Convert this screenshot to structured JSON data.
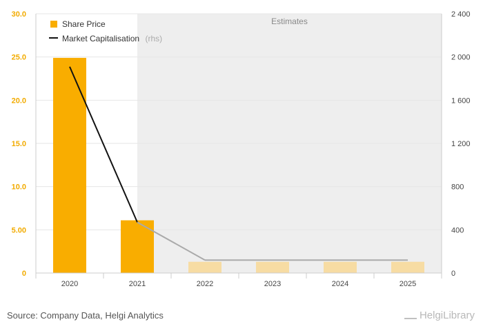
{
  "chart_data": {
    "type": "bar",
    "categories": [
      "2020",
      "2021",
      "2022",
      "2023",
      "2024",
      "2025"
    ],
    "series": [
      {
        "name": "Share Price",
        "type": "bar",
        "axis": "left",
        "values": [
          24.9,
          6.1,
          1.3,
          1.3,
          1.3,
          1.3
        ],
        "estimate": [
          false,
          false,
          true,
          true,
          true,
          true
        ]
      },
      {
        "name": "Market Capitalisation",
        "type": "line",
        "axis": "right",
        "values": [
          1910,
          470,
          120,
          120,
          120,
          120
        ],
        "estimate": [
          false,
          false,
          true,
          true,
          true,
          true
        ]
      }
    ],
    "ylim_left": [
      0,
      30
    ],
    "yticks_left": [
      "0",
      "5.00",
      "10.0",
      "15.0",
      "20.0",
      "25.0",
      "30.0"
    ],
    "ylim_right": [
      0,
      2400
    ],
    "yticks_right": [
      "0",
      "400",
      "800",
      "1 200",
      "1 600",
      "2 000",
      "2 400"
    ],
    "estimates_label": "Estimates",
    "estimates_start_index": 1.5,
    "legend": {
      "position": "top-left",
      "share_price": "Share Price",
      "market_cap": "Market Capitalisation",
      "rhs_suffix": "(rhs)"
    },
    "grid": true,
    "colors": {
      "bar": "#f9ad00",
      "bar_estimate": "#f7dca3",
      "line": "#111111",
      "line_estimate": "#aaaaaa",
      "estimates_bg": "#eeeeee"
    }
  },
  "footer": {
    "source": "Source: Company Data, Helgi Analytics",
    "brand": "HelgiLibrary"
  }
}
